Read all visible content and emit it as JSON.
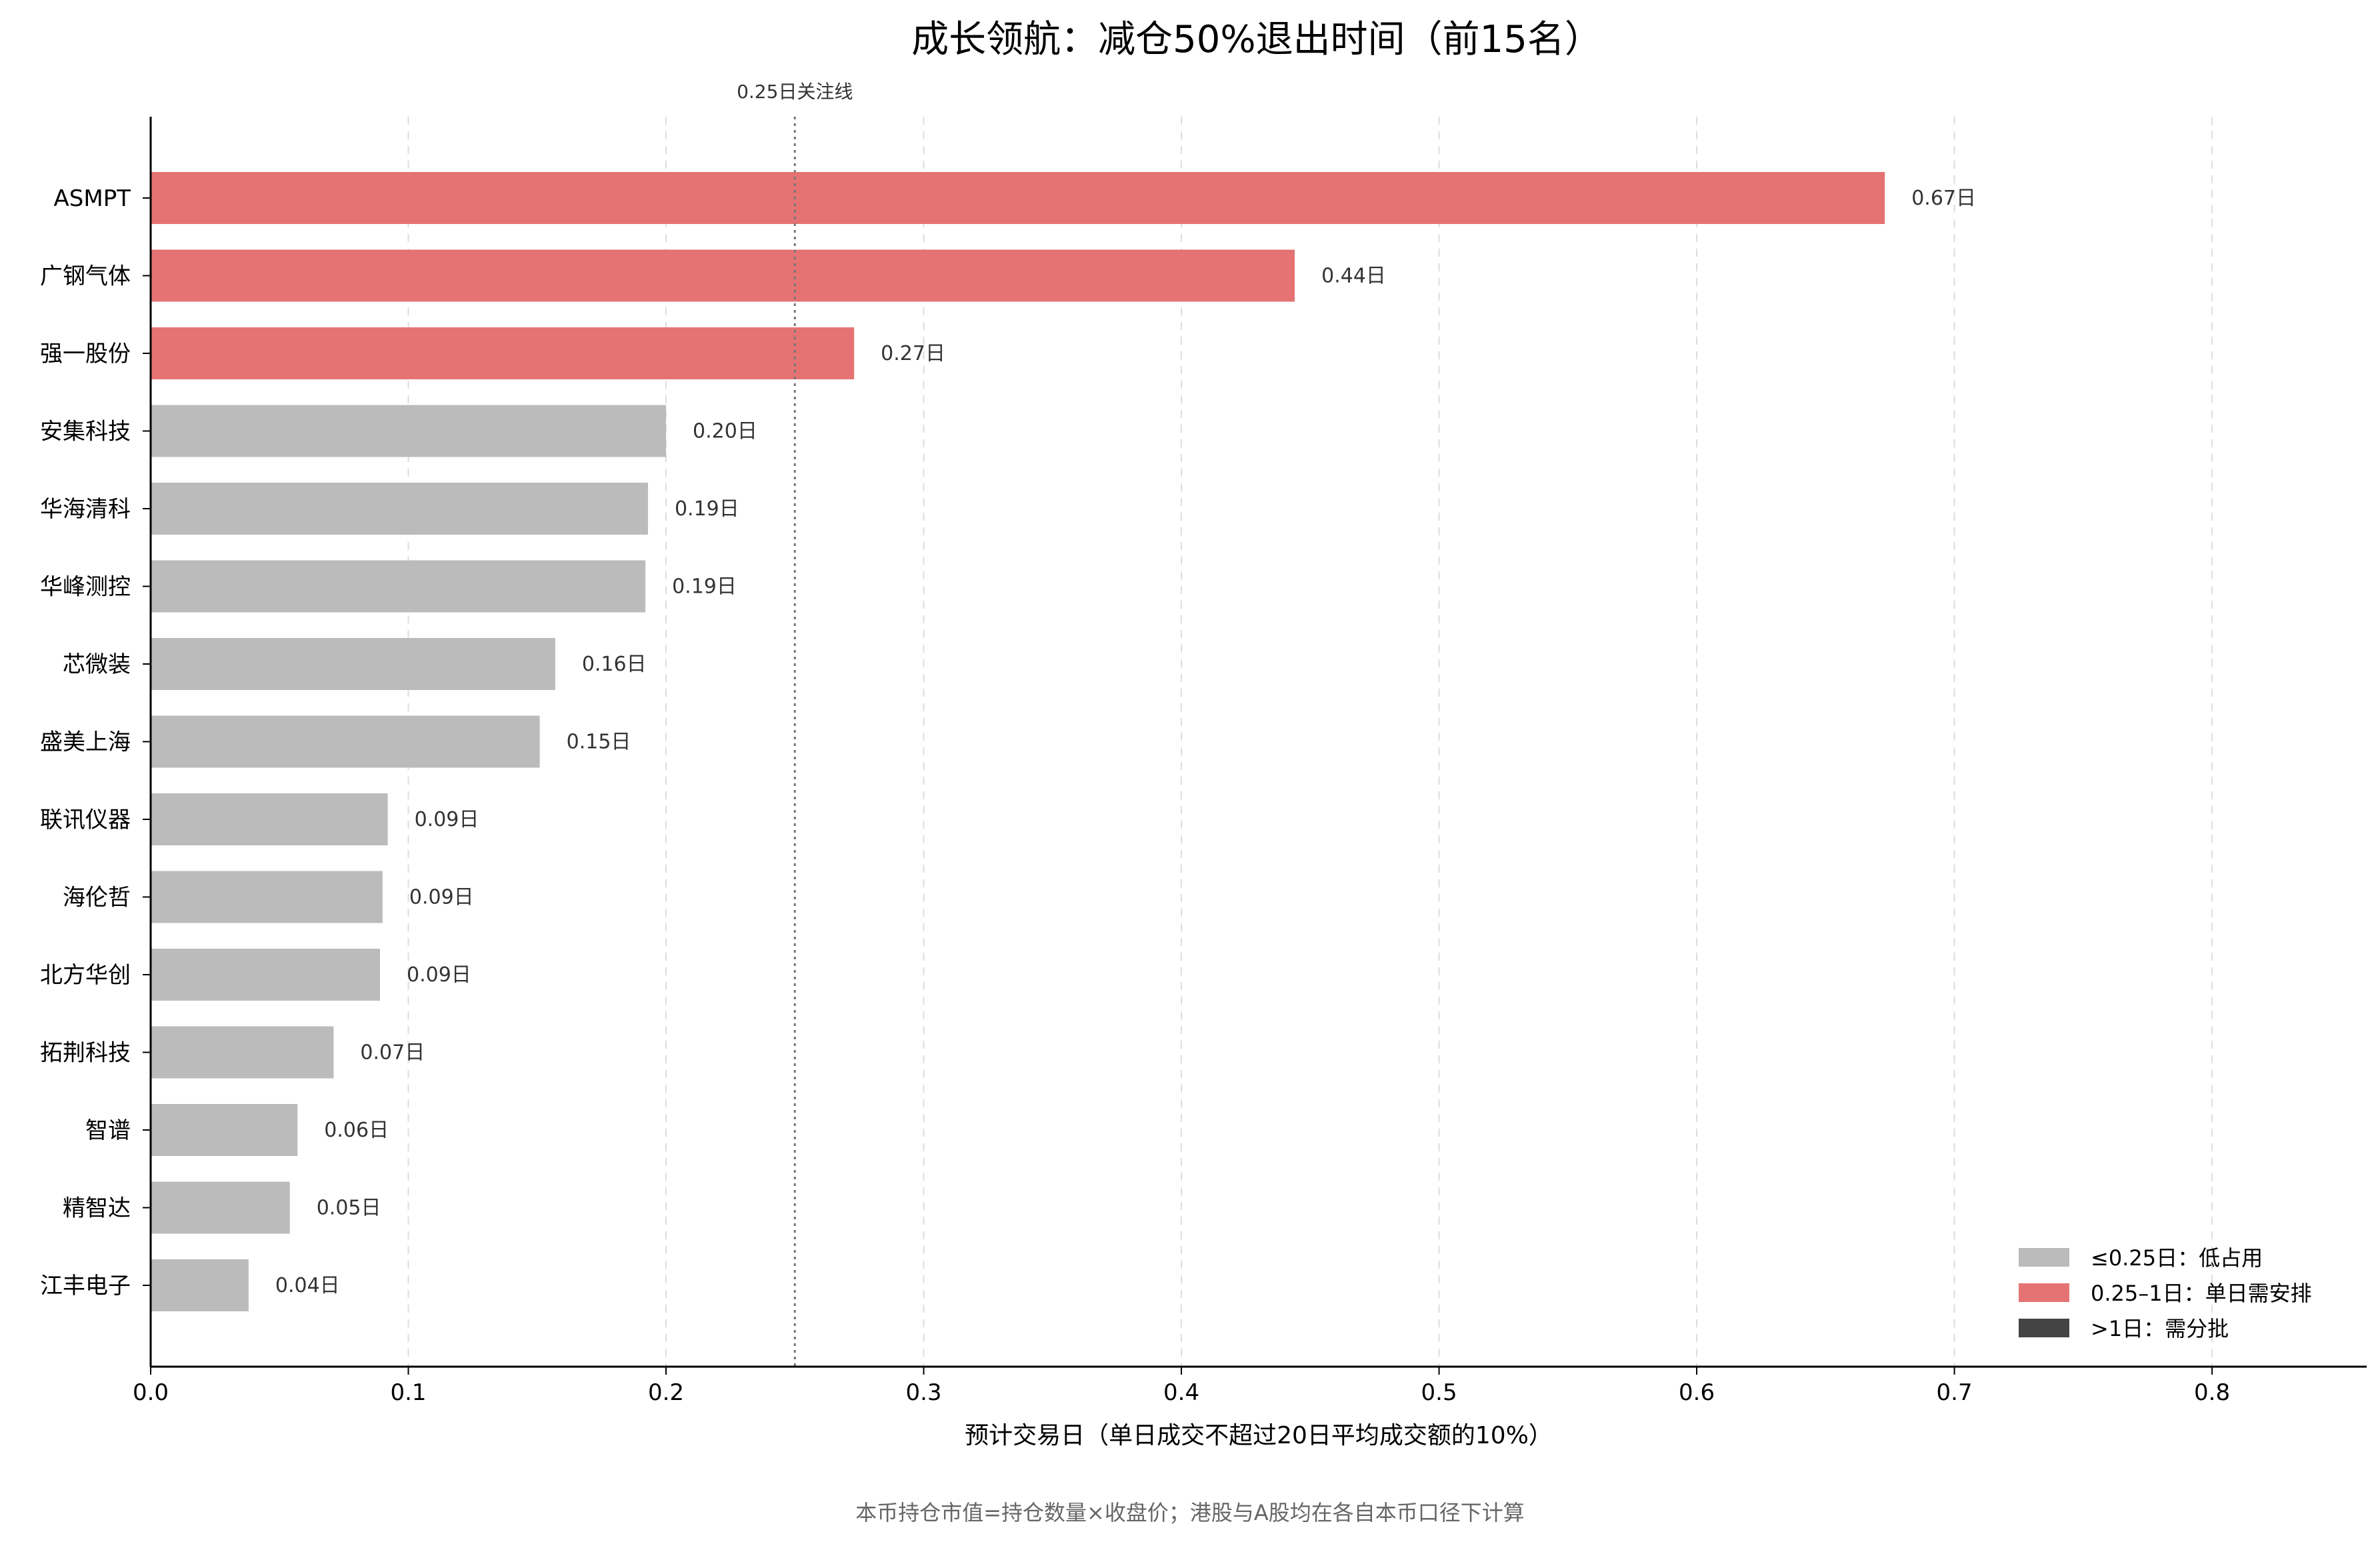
{
  "chart_data": {
    "type": "bar",
    "orientation": "horizontal",
    "title": "成长领航：减仓50%退出时间（前15名）",
    "xlabel": "预计交易日（单日成交不超过20日平均成交额的10%）",
    "ylabel": "",
    "xlim": [
      0,
      0.86
    ],
    "xticks": [
      0.0,
      0.1,
      0.2,
      0.3,
      0.4,
      0.5,
      0.6,
      0.7,
      0.8
    ],
    "xtick_labels": [
      "0.0",
      "0.1",
      "0.2",
      "0.3",
      "0.4",
      "0.5",
      "0.6",
      "0.7",
      "0.8"
    ],
    "grid": "x-dashed",
    "categories": [
      "ASMPT",
      "广钢气体",
      "强一股份",
      "安集科技",
      "华海清科",
      "华峰测控",
      "芯微装",
      "盛美上海",
      "联讯仪器",
      "海伦哲",
      "北方华创",
      "拓荆科技",
      "智谱",
      "精智达",
      "江丰电子"
    ],
    "values": [
      0.673,
      0.444,
      0.273,
      0.2,
      0.193,
      0.192,
      0.157,
      0.151,
      0.092,
      0.09,
      0.089,
      0.071,
      0.057,
      0.054,
      0.038
    ],
    "value_labels": [
      "0.67日",
      "0.44日",
      "0.27日",
      "0.20日",
      "0.19日",
      "0.19日",
      "0.16日",
      "0.15日",
      "0.09日",
      "0.09日",
      "0.09日",
      "0.07日",
      "0.06日",
      "0.05日",
      "0.04日"
    ],
    "bar_groups": [
      "mid",
      "mid",
      "mid",
      "low",
      "low",
      "low",
      "low",
      "low",
      "low",
      "low",
      "low",
      "low",
      "low",
      "low",
      "low"
    ],
    "reference_line": {
      "x": 0.25,
      "label": "0.25日关注线",
      "style": "dotted"
    },
    "legend": {
      "placement": "bottom-right",
      "entries": [
        {
          "key": "low",
          "label": "≤0.25日：低占用",
          "color": "#bbbbbb"
        },
        {
          "key": "mid",
          "label": "0.25–1日：单日需安排",
          "color": "#e57373"
        },
        {
          "key": "high",
          "label": ">1日：需分批",
          "color": "#444444"
        }
      ]
    },
    "footnote": "本币持仓市值=持仓数量×收盘价；港股与A股均在各自本币口径下计算"
  }
}
